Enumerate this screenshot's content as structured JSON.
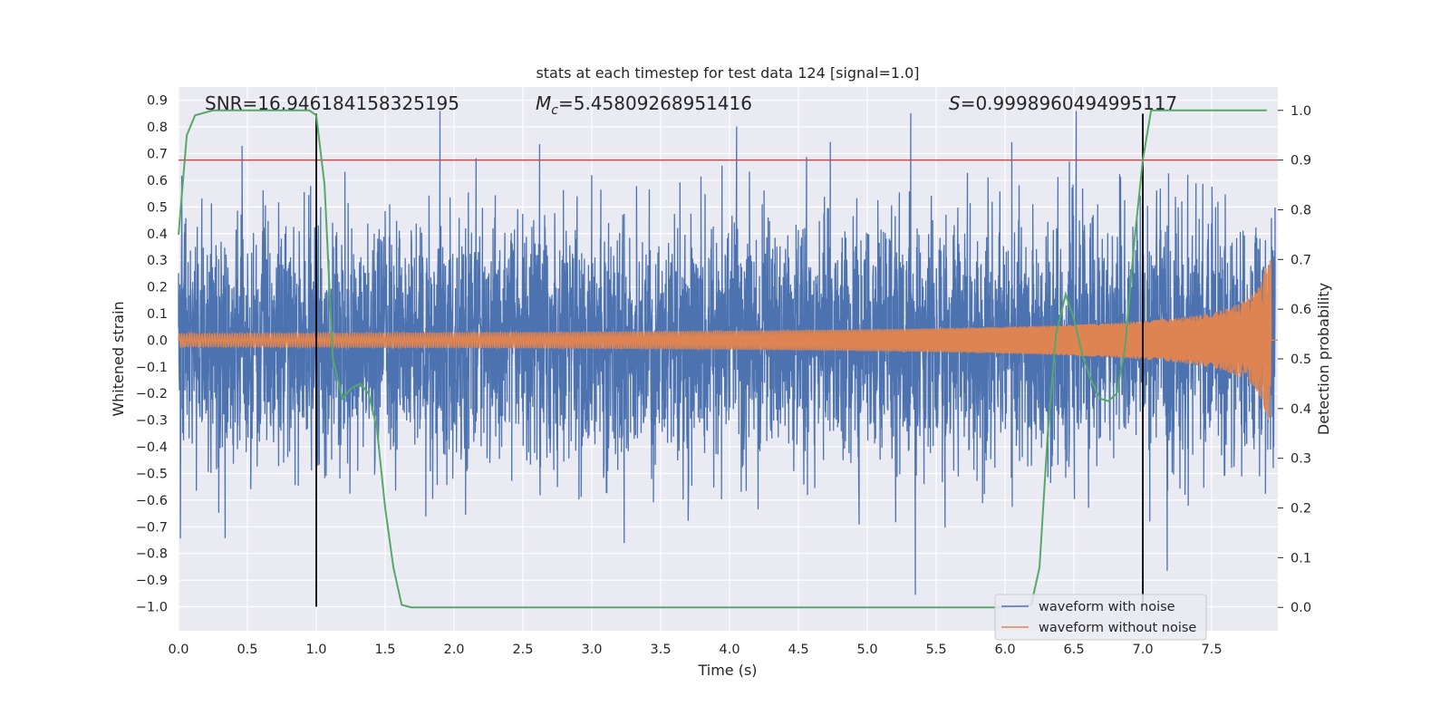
{
  "chart_data": {
    "type": "line",
    "title": "stats at each timestep for test data 124 [signal=1.0]",
    "xlabel": "Time (s)",
    "ylabel": "Whitened strain",
    "y2label": "Detection probability",
    "xlim": [
      0.0,
      7.98
    ],
    "ylim": [
      -1.09,
      0.95
    ],
    "y2lim": [
      -0.047,
      1.047
    ],
    "grid": true,
    "legend_position": "lower-right",
    "x_ticks": [
      "0.0",
      "0.5",
      "1.0",
      "1.5",
      "2.0",
      "2.5",
      "3.0",
      "3.5",
      "4.0",
      "4.5",
      "5.0",
      "5.5",
      "6.0",
      "6.5",
      "7.0",
      "7.5"
    ],
    "y_ticks": [
      "0.9",
      "0.8",
      "0.7",
      "0.6",
      "0.5",
      "0.4",
      "0.3",
      "0.2",
      "0.1",
      "0.0",
      "−0.1",
      "−0.2",
      "−0.3",
      "−0.4",
      "−0.5",
      "−0.6",
      "−0.7",
      "−0.8",
      "−0.9",
      "−1.0"
    ],
    "y2_ticks": [
      "1.0",
      "0.9",
      "0.8",
      "0.7",
      "0.6",
      "0.5",
      "0.4",
      "0.3",
      "0.2",
      "0.1",
      "0.0"
    ],
    "annotations": {
      "snr": "SNR=16.946184158325195",
      "mc_symbol": "M",
      "mc_sub": "c",
      "mc_value": "=5.45809268951416",
      "s_symbol": "S",
      "s_value": "=0.9998960494995117"
    },
    "series": [
      {
        "name": "waveform with noise",
        "color": "#4c72b0",
        "kind": "noise",
        "amplitude_sigma": 0.18
      },
      {
        "name": "waveform without noise",
        "color": "#dd8452",
        "kind": "chirp",
        "start_amplitude": 0.025,
        "peak_amplitude": 0.3,
        "end_time": 7.93
      }
    ],
    "detection_probability": {
      "color": "#55a868",
      "axis": "y2",
      "x": [
        0.0,
        0.06,
        0.12,
        0.25,
        0.5,
        0.75,
        0.95,
        1.0,
        1.06,
        1.12,
        1.19,
        1.25,
        1.32,
        1.38,
        1.44,
        1.5,
        1.56,
        1.62,
        1.69,
        2.0,
        3.0,
        4.0,
        5.0,
        6.0,
        6.19,
        6.25,
        6.31,
        6.37,
        6.44,
        6.5,
        6.56,
        6.62,
        6.69,
        6.75,
        6.81,
        6.87,
        6.94,
        7.0,
        7.06,
        7.12,
        7.5,
        7.9
      ],
      "y": [
        0.75,
        0.95,
        0.99,
        1.0,
        1.0,
        1.0,
        1.0,
        0.99,
        0.85,
        0.5,
        0.42,
        0.44,
        0.45,
        0.43,
        0.36,
        0.2,
        0.08,
        0.005,
        0.0,
        0.0,
        0.0,
        0.0,
        0.0,
        0.0,
        0.005,
        0.08,
        0.35,
        0.55,
        0.63,
        0.58,
        0.51,
        0.46,
        0.42,
        0.415,
        0.43,
        0.52,
        0.74,
        0.9,
        1.0,
        1.0,
        1.0,
        1.0
      ]
    },
    "threshold": {
      "value": 0.9,
      "axis": "y2",
      "color": "#c44e52"
    },
    "vertical_lines": [
      {
        "x": 1.0
      },
      {
        "x": 7.0
      }
    ],
    "vline_range": [
      -1.0,
      0.85
    ]
  }
}
